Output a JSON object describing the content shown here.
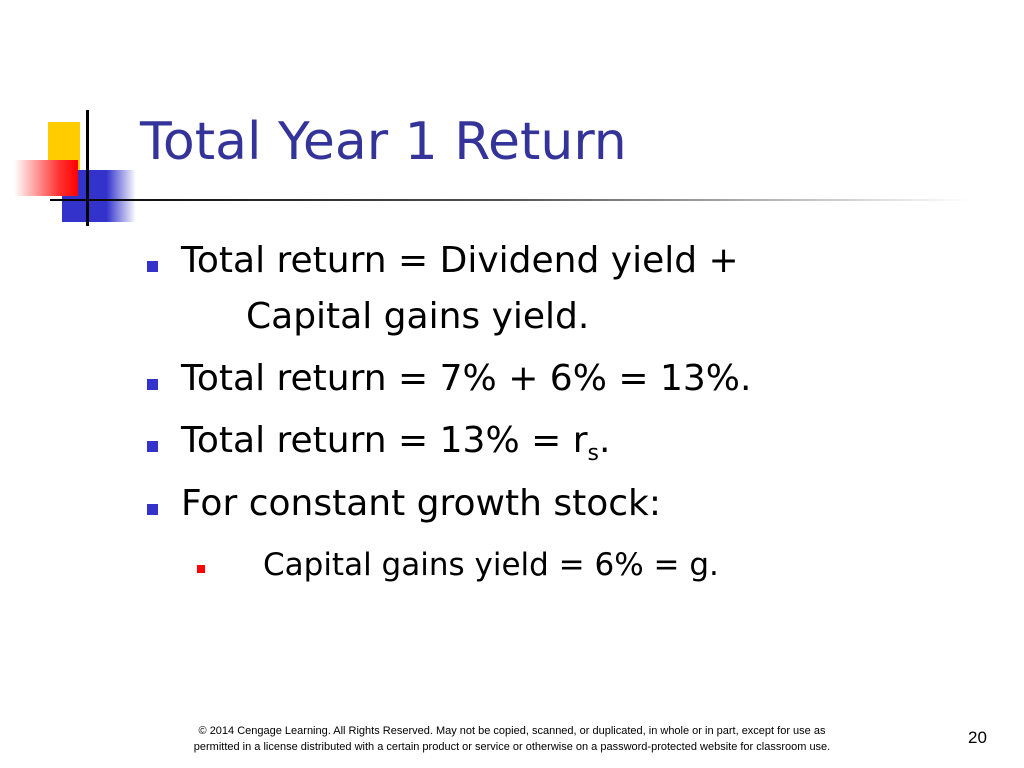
{
  "slide": {
    "title": "Total Year 1 Return",
    "bullets": [
      {
        "lines": [
          "Total return = Dividend yield +",
          "Capital gains yield."
        ]
      },
      {
        "text": "Total return = 7% + 6% = 13%."
      },
      {
        "text": "Total return = 13% = r",
        "subscript": "s",
        "tail": "."
      },
      {
        "text": "For constant growth stock:"
      }
    ],
    "sub_bullets": [
      {
        "text": "Capital gains yield = 6% = g."
      }
    ],
    "footer": [
      "© 2014 Cengage Learning. All Rights Reserved. May not be copied, scanned, or duplicated, in whole or in part, except for use as",
      "permitted in a license distributed with a certain product or service or otherwise on a password-protected website for classroom use."
    ],
    "page_number": "20"
  }
}
